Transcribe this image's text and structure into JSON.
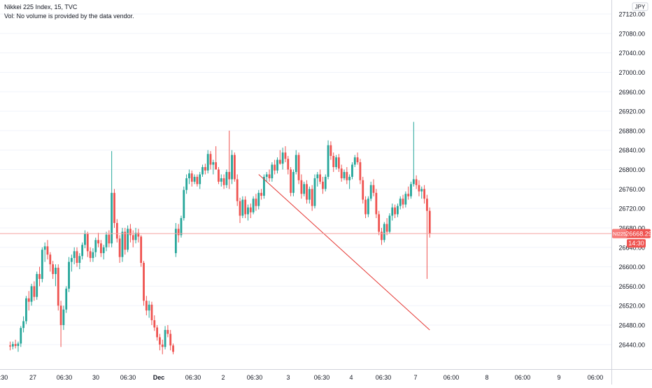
{
  "header": {
    "title": "Nikkei 225 Index, 15, TVC",
    "volume_note": "Vol: No volume is provided by the data vendor."
  },
  "price_scale": {
    "currency": "JPY",
    "labels": [
      "27120.00",
      "27080.00",
      "27040.00",
      "27000.00",
      "26960.00",
      "26920.00",
      "26880.00",
      "26840.00",
      "26800.00",
      "26760.00",
      "26720.00",
      "26680.00",
      "26640.00",
      "26600.00",
      "26560.00",
      "26520.00",
      "26480.00",
      "26440.00"
    ],
    "values": [
      27120,
      27080,
      27040,
      27000,
      26960,
      26920,
      26880,
      26840,
      26800,
      26760,
      26720,
      26680,
      26640,
      26600,
      26560,
      26520,
      26480,
      26440
    ]
  },
  "time_scale": {
    "labels": [
      ":30",
      "27",
      "06:30",
      "30",
      "06:30",
      "Dec",
      "06:30",
      "2",
      "06:30",
      "3",
      "06:30",
      "4",
      "06:30",
      "7",
      "06:00",
      "8",
      "06:00",
      "9",
      "06:00"
    ],
    "bold": [
      false,
      false,
      false,
      false,
      false,
      true,
      false,
      false,
      false,
      false,
      false,
      false,
      false,
      false,
      false,
      false,
      false,
      false,
      false
    ]
  },
  "last_price": {
    "symbol": "NI225",
    "price_label": "26668.29",
    "price": 26668.29,
    "countdown": "14:30"
  },
  "colors": {
    "up": "#26a69a",
    "down": "#ef5350",
    "grid": "#f0f3fa",
    "axis_text": "#131722",
    "trendline": "#e53935"
  },
  "chart_data": {
    "type": "candlestick",
    "title": "Nikkei 225 Index, 15, TVC",
    "ylim": [
      26420,
      27140
    ],
    "trendline": {
      "start": {
        "bar": 93,
        "price": 26790
      },
      "end": {
        "bar": 157,
        "price": 26470
      }
    },
    "candles": [
      {
        "o": 26438,
        "h": 26446,
        "l": 26428,
        "c": 26436
      },
      {
        "o": 26436,
        "h": 26446,
        "l": 26430,
        "c": 26441
      },
      {
        "o": 26441,
        "h": 26450,
        "l": 26432,
        "c": 26437
      },
      {
        "o": 26437,
        "h": 26446,
        "l": 26425,
        "c": 26442
      },
      {
        "o": 26442,
        "h": 26478,
        "l": 26435,
        "c": 26474
      },
      {
        "o": 26474,
        "h": 26498,
        "l": 26465,
        "c": 26488
      },
      {
        "o": 26488,
        "h": 26540,
        "l": 26482,
        "c": 26535
      },
      {
        "o": 26535,
        "h": 26550,
        "l": 26510,
        "c": 26528
      },
      {
        "o": 26528,
        "h": 26565,
        "l": 26520,
        "c": 26560
      },
      {
        "o": 26560,
        "h": 26570,
        "l": 26530,
        "c": 26538
      },
      {
        "o": 26538,
        "h": 26590,
        "l": 26532,
        "c": 26585
      },
      {
        "o": 26585,
        "h": 26600,
        "l": 26560,
        "c": 26575
      },
      {
        "o": 26575,
        "h": 26640,
        "l": 26568,
        "c": 26635
      },
      {
        "o": 26635,
        "h": 26650,
        "l": 26610,
        "c": 26642
      },
      {
        "o": 26642,
        "h": 26655,
        "l": 26615,
        "c": 26625
      },
      {
        "o": 26625,
        "h": 26630,
        "l": 26590,
        "c": 26605
      },
      {
        "o": 26605,
        "h": 26612,
        "l": 26575,
        "c": 26585
      },
      {
        "o": 26585,
        "h": 26605,
        "l": 26560,
        "c": 26598
      },
      {
        "o": 26598,
        "h": 26605,
        "l": 26510,
        "c": 26520
      },
      {
        "o": 26520,
        "h": 26530,
        "l": 26435,
        "c": 26480
      },
      {
        "o": 26480,
        "h": 26520,
        "l": 26470,
        "c": 26512
      },
      {
        "o": 26512,
        "h": 26560,
        "l": 26505,
        "c": 26555
      },
      {
        "o": 26555,
        "h": 26620,
        "l": 26548,
        "c": 26610
      },
      {
        "o": 26610,
        "h": 26625,
        "l": 26590,
        "c": 26618
      },
      {
        "o": 26618,
        "h": 26640,
        "l": 26605,
        "c": 26632
      },
      {
        "o": 26632,
        "h": 26640,
        "l": 26600,
        "c": 26608
      },
      {
        "o": 26608,
        "h": 26628,
        "l": 26595,
        "c": 26622
      },
      {
        "o": 26622,
        "h": 26650,
        "l": 26615,
        "c": 26645
      },
      {
        "o": 26645,
        "h": 26675,
        "l": 26638,
        "c": 26668
      },
      {
        "o": 26668,
        "h": 26672,
        "l": 26620,
        "c": 26632
      },
      {
        "o": 26632,
        "h": 26640,
        "l": 26610,
        "c": 26618
      },
      {
        "o": 26618,
        "h": 26638,
        "l": 26610,
        "c": 26630
      },
      {
        "o": 26630,
        "h": 26660,
        "l": 26620,
        "c": 26655
      },
      {
        "o": 26655,
        "h": 26670,
        "l": 26640,
        "c": 26648
      },
      {
        "o": 26648,
        "h": 26655,
        "l": 26620,
        "c": 26628
      },
      {
        "o": 26628,
        "h": 26645,
        "l": 26615,
        "c": 26640
      },
      {
        "o": 26640,
        "h": 26672,
        "l": 26632,
        "c": 26666
      },
      {
        "o": 26666,
        "h": 26675,
        "l": 26640,
        "c": 26648
      },
      {
        "o": 26648,
        "h": 26838,
        "l": 26640,
        "c": 26752
      },
      {
        "o": 26752,
        "h": 26760,
        "l": 26680,
        "c": 26690
      },
      {
        "o": 26690,
        "h": 26698,
        "l": 26650,
        "c": 26658
      },
      {
        "o": 26658,
        "h": 26665,
        "l": 26608,
        "c": 26620
      },
      {
        "o": 26620,
        "h": 26680,
        "l": 26610,
        "c": 26672
      },
      {
        "o": 26672,
        "h": 26680,
        "l": 26625,
        "c": 26635
      },
      {
        "o": 26635,
        "h": 26685,
        "l": 26630,
        "c": 26678
      },
      {
        "o": 26678,
        "h": 26688,
        "l": 26650,
        "c": 26665
      },
      {
        "o": 26665,
        "h": 26675,
        "l": 26640,
        "c": 26655
      },
      {
        "o": 26655,
        "h": 26680,
        "l": 26648,
        "c": 26670
      },
      {
        "o": 26670,
        "h": 26678,
        "l": 26650,
        "c": 26662
      },
      {
        "o": 26662,
        "h": 26665,
        "l": 26600,
        "c": 26608
      },
      {
        "o": 26608,
        "h": 26612,
        "l": 26520,
        "c": 26530
      },
      {
        "o": 26530,
        "h": 26540,
        "l": 26500,
        "c": 26510
      },
      {
        "o": 26510,
        "h": 26530,
        "l": 26495,
        "c": 26522
      },
      {
        "o": 26522,
        "h": 26528,
        "l": 26480,
        "c": 26490
      },
      {
        "o": 26490,
        "h": 26500,
        "l": 26468,
        "c": 26475
      },
      {
        "o": 26475,
        "h": 26480,
        "l": 26448,
        "c": 26455
      },
      {
        "o": 26455,
        "h": 26462,
        "l": 26428,
        "c": 26440
      },
      {
        "o": 26440,
        "h": 26450,
        "l": 26420,
        "c": 26435
      },
      {
        "o": 26435,
        "h": 26478,
        "l": 26430,
        "c": 26470
      },
      {
        "o": 26470,
        "h": 26480,
        "l": 26455,
        "c": 26462
      },
      {
        "o": 26462,
        "h": 26470,
        "l": 26428,
        "c": 26438
      },
      {
        "o": 26438,
        "h": 26442,
        "l": 26420,
        "c": 26425
      },
      {
        "o": 26628,
        "h": 26690,
        "l": 26620,
        "c": 26678
      },
      {
        "o": 26678,
        "h": 26688,
        "l": 26650,
        "c": 26665
      },
      {
        "o": 26665,
        "h": 26705,
        "l": 26660,
        "c": 26700
      },
      {
        "o": 26700,
        "h": 26765,
        "l": 26695,
        "c": 26758
      },
      {
        "o": 26758,
        "h": 26790,
        "l": 26750,
        "c": 26782
      },
      {
        "o": 26782,
        "h": 26800,
        "l": 26770,
        "c": 26792
      },
      {
        "o": 26792,
        "h": 26798,
        "l": 26765,
        "c": 26775
      },
      {
        "o": 26775,
        "h": 26790,
        "l": 26770,
        "c": 26785
      },
      {
        "o": 26785,
        "h": 26790,
        "l": 26765,
        "c": 26770
      },
      {
        "o": 26770,
        "h": 26795,
        "l": 26760,
        "c": 26790
      },
      {
        "o": 26790,
        "h": 26810,
        "l": 26785,
        "c": 26805
      },
      {
        "o": 26805,
        "h": 26812,
        "l": 26790,
        "c": 26798
      },
      {
        "o": 26798,
        "h": 26840,
        "l": 26792,
        "c": 26832
      },
      {
        "o": 26832,
        "h": 26838,
        "l": 26800,
        "c": 26810
      },
      {
        "o": 26810,
        "h": 26820,
        "l": 26790,
        "c": 26815
      },
      {
        "o": 26815,
        "h": 26848,
        "l": 26805,
        "c": 26800
      },
      {
        "o": 26800,
        "h": 26805,
        "l": 26770,
        "c": 26775
      },
      {
        "o": 26775,
        "h": 26790,
        "l": 26765,
        "c": 26782
      },
      {
        "o": 26782,
        "h": 26790,
        "l": 26760,
        "c": 26768
      },
      {
        "o": 26768,
        "h": 26800,
        "l": 26762,
        "c": 26795
      },
      {
        "o": 26795,
        "h": 26880,
        "l": 26760,
        "c": 26780
      },
      {
        "o": 26780,
        "h": 26840,
        "l": 26770,
        "c": 26830
      },
      {
        "o": 26830,
        "h": 26835,
        "l": 26775,
        "c": 26780
      },
      {
        "o": 26780,
        "h": 26790,
        "l": 26725,
        "c": 26735
      },
      {
        "o": 26735,
        "h": 26742,
        "l": 26690,
        "c": 26705
      },
      {
        "o": 26705,
        "h": 26745,
        "l": 26700,
        "c": 26738
      },
      {
        "o": 26738,
        "h": 26745,
        "l": 26700,
        "c": 26708
      },
      {
        "o": 26708,
        "h": 26728,
        "l": 26695,
        "c": 26722
      },
      {
        "o": 26722,
        "h": 26730,
        "l": 26700,
        "c": 26712
      },
      {
        "o": 26712,
        "h": 26745,
        "l": 26708,
        "c": 26740
      },
      {
        "o": 26740,
        "h": 26750,
        "l": 26715,
        "c": 26725
      },
      {
        "o": 26725,
        "h": 26758,
        "l": 26718,
        "c": 26752
      },
      {
        "o": 26752,
        "h": 26760,
        "l": 26738,
        "c": 26746
      },
      {
        "o": 26746,
        "h": 26790,
        "l": 26740,
        "c": 26785
      },
      {
        "o": 26785,
        "h": 26795,
        "l": 26775,
        "c": 26790
      },
      {
        "o": 26790,
        "h": 26800,
        "l": 26775,
        "c": 26782
      },
      {
        "o": 26782,
        "h": 26815,
        "l": 26775,
        "c": 26810
      },
      {
        "o": 26810,
        "h": 26820,
        "l": 26790,
        "c": 26798
      },
      {
        "o": 26798,
        "h": 26825,
        "l": 26792,
        "c": 26820
      },
      {
        "o": 26820,
        "h": 26840,
        "l": 26810,
        "c": 26812
      },
      {
        "o": 26812,
        "h": 26845,
        "l": 26800,
        "c": 26835
      },
      {
        "o": 26835,
        "h": 26848,
        "l": 26815,
        "c": 26822
      },
      {
        "o": 26822,
        "h": 26828,
        "l": 26790,
        "c": 26800
      },
      {
        "o": 26800,
        "h": 26805,
        "l": 26745,
        "c": 26752
      },
      {
        "o": 26752,
        "h": 26800,
        "l": 26745,
        "c": 26795
      },
      {
        "o": 26795,
        "h": 26840,
        "l": 26790,
        "c": 26830
      },
      {
        "o": 26830,
        "h": 26835,
        "l": 26770,
        "c": 26778
      },
      {
        "o": 26778,
        "h": 26790,
        "l": 26740,
        "c": 26750
      },
      {
        "o": 26750,
        "h": 26775,
        "l": 26745,
        "c": 26770
      },
      {
        "o": 26770,
        "h": 26778,
        "l": 26730,
        "c": 26738
      },
      {
        "o": 26738,
        "h": 26765,
        "l": 26730,
        "c": 26760
      },
      {
        "o": 26760,
        "h": 26768,
        "l": 26715,
        "c": 26725
      },
      {
        "o": 26725,
        "h": 26790,
        "l": 26720,
        "c": 26782
      },
      {
        "o": 26782,
        "h": 26795,
        "l": 26765,
        "c": 26790
      },
      {
        "o": 26790,
        "h": 26800,
        "l": 26770,
        "c": 26775
      },
      {
        "o": 26775,
        "h": 26785,
        "l": 26750,
        "c": 26760
      },
      {
        "o": 26760,
        "h": 26790,
        "l": 26755,
        "c": 26785
      },
      {
        "o": 26785,
        "h": 26860,
        "l": 26780,
        "c": 26850
      },
      {
        "o": 26850,
        "h": 26858,
        "l": 26820,
        "c": 26828
      },
      {
        "o": 26828,
        "h": 26835,
        "l": 26795,
        "c": 26805
      },
      {
        "o": 26805,
        "h": 26830,
        "l": 26800,
        "c": 26825
      },
      {
        "o": 26825,
        "h": 26832,
        "l": 26795,
        "c": 26802
      },
      {
        "o": 26802,
        "h": 26810,
        "l": 26775,
        "c": 26782
      },
      {
        "o": 26782,
        "h": 26800,
        "l": 26778,
        "c": 26795
      },
      {
        "o": 26795,
        "h": 26805,
        "l": 26770,
        "c": 26778
      },
      {
        "o": 26778,
        "h": 26790,
        "l": 26760,
        "c": 26785
      },
      {
        "o": 26785,
        "h": 26815,
        "l": 26780,
        "c": 26810
      },
      {
        "o": 26810,
        "h": 26830,
        "l": 26805,
        "c": 26825
      },
      {
        "o": 26825,
        "h": 26835,
        "l": 26810,
        "c": 26815
      },
      {
        "o": 26815,
        "h": 26822,
        "l": 26770,
        "c": 26778
      },
      {
        "o": 26778,
        "h": 26785,
        "l": 26730,
        "c": 26738
      },
      {
        "o": 26738,
        "h": 26745,
        "l": 26700,
        "c": 26708
      },
      {
        "o": 26708,
        "h": 26745,
        "l": 26702,
        "c": 26740
      },
      {
        "o": 26740,
        "h": 26775,
        "l": 26735,
        "c": 26768
      },
      {
        "o": 26768,
        "h": 26780,
        "l": 26745,
        "c": 26752
      },
      {
        "o": 26752,
        "h": 26760,
        "l": 26700,
        "c": 26708
      },
      {
        "o": 26708,
        "h": 26715,
        "l": 26665,
        "c": 26672
      },
      {
        "o": 26672,
        "h": 26680,
        "l": 26645,
        "c": 26655
      },
      {
        "o": 26655,
        "h": 26692,
        "l": 26650,
        "c": 26688
      },
      {
        "o": 26688,
        "h": 26700,
        "l": 26665,
        "c": 26672
      },
      {
        "o": 26672,
        "h": 26710,
        "l": 26668,
        "c": 26705
      },
      {
        "o": 26705,
        "h": 26730,
        "l": 26695,
        "c": 26722
      },
      {
        "o": 26722,
        "h": 26728,
        "l": 26700,
        "c": 26708
      },
      {
        "o": 26708,
        "h": 26730,
        "l": 26702,
        "c": 26725
      },
      {
        "o": 26725,
        "h": 26745,
        "l": 26718,
        "c": 26740
      },
      {
        "o": 26740,
        "h": 26748,
        "l": 26720,
        "c": 26728
      },
      {
        "o": 26728,
        "h": 26755,
        "l": 26722,
        "c": 26750
      },
      {
        "o": 26750,
        "h": 26765,
        "l": 26738,
        "c": 26745
      },
      {
        "o": 26745,
        "h": 26775,
        "l": 26740,
        "c": 26770
      },
      {
        "o": 26770,
        "h": 26898,
        "l": 26765,
        "c": 26780
      },
      {
        "o": 26780,
        "h": 26788,
        "l": 26760,
        "c": 26768
      },
      {
        "o": 26768,
        "h": 26778,
        "l": 26745,
        "c": 26755
      },
      {
        "o": 26755,
        "h": 26765,
        "l": 26740,
        "c": 26760
      },
      {
        "o": 26760,
        "h": 26768,
        "l": 26730,
        "c": 26740
      },
      {
        "o": 26740,
        "h": 26748,
        "l": 26575,
        "c": 26715
      },
      {
        "o": 26715,
        "h": 26722,
        "l": 26660,
        "c": 26668
      }
    ]
  }
}
